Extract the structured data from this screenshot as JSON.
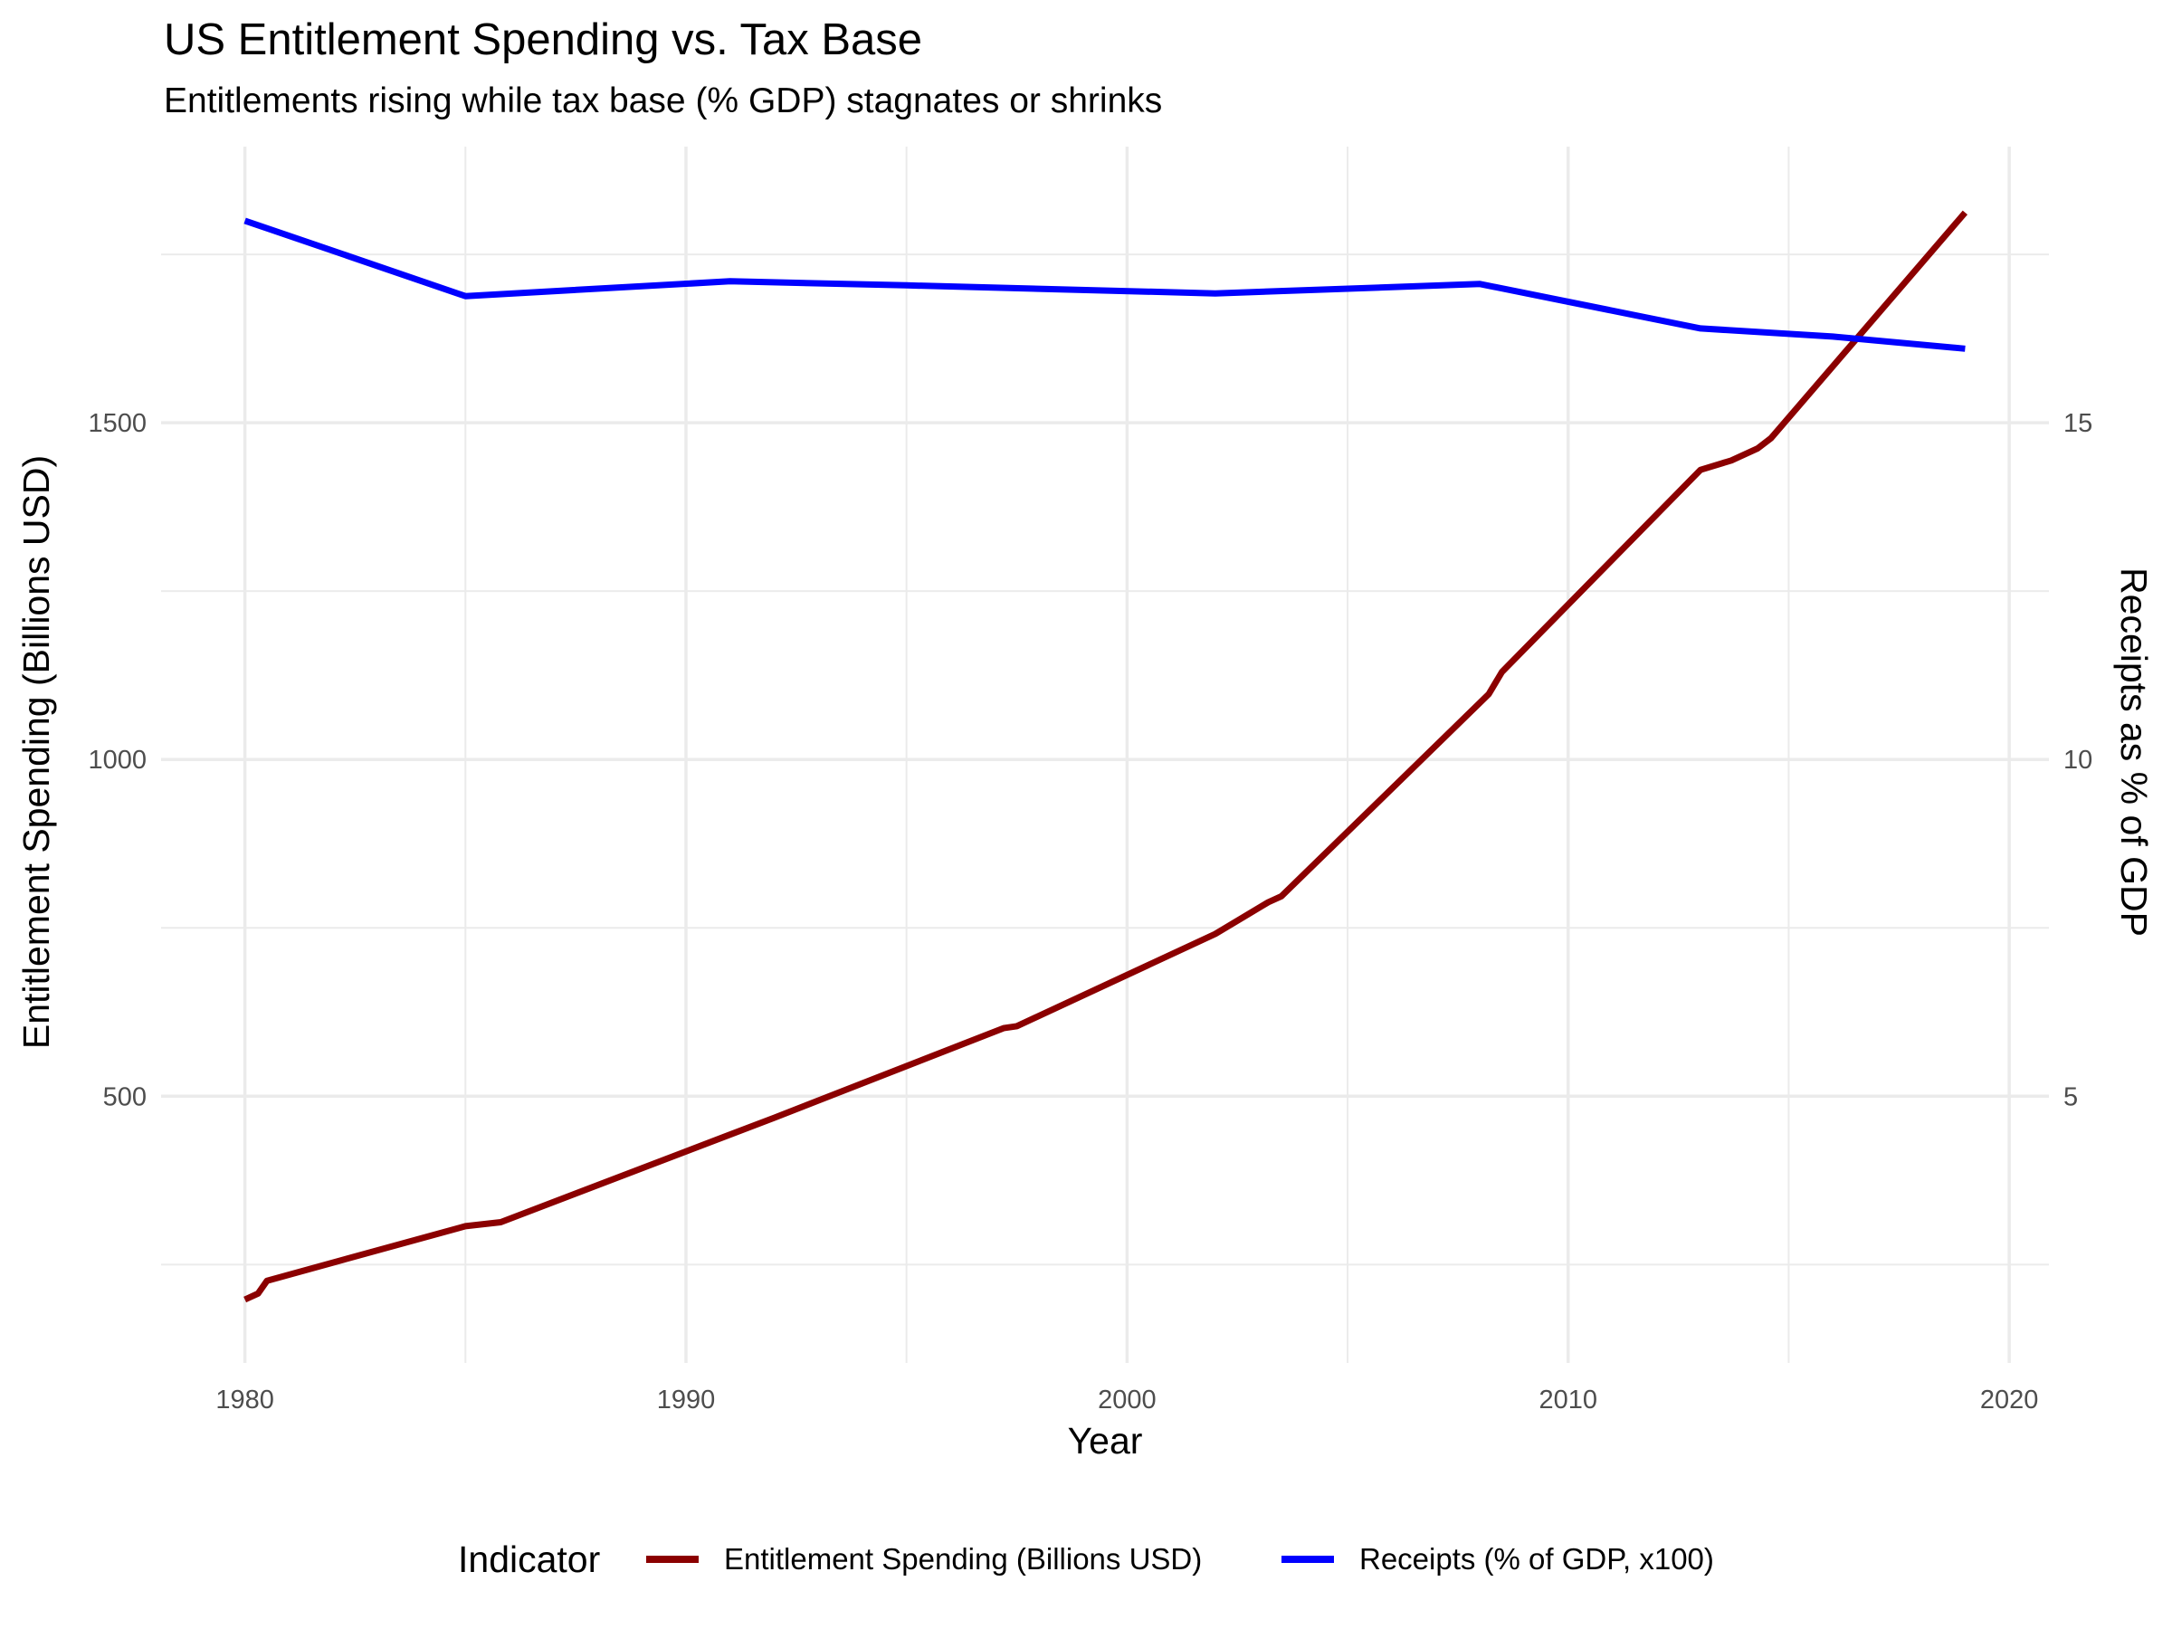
{
  "chart_data": {
    "type": "line",
    "title": "US Entitlement Spending vs. Tax Base",
    "subtitle": "Entitlements rising while tax base (% GDP) stagnates or shrinks",
    "xlabel": "Year",
    "ylabel": "Entitlement Spending (Billions USD)",
    "y2label": "Receipts as % of GDP",
    "xlim": [
      1978.1,
      2020.9
    ],
    "ylim": [
      104,
      1910
    ],
    "xticks": [
      1980,
      1990,
      2000,
      2010,
      2020
    ],
    "xticks_minor": [
      1985,
      1995,
      2005,
      2015
    ],
    "yticks": [
      500,
      1000,
      1500
    ],
    "yticks_minor": [
      250,
      750,
      1250,
      1750
    ],
    "y2ticks": [
      5,
      10,
      15
    ],
    "y2_scale": "y2 = y / 100",
    "grid": true,
    "legend": {
      "title": "Indicator",
      "position": "bottom"
    },
    "series": [
      {
        "name": "Entitlement Spending (Billions USD)",
        "color": "#8B0000",
        "x": [
          1980,
          1980.3,
          1980.5,
          1985,
          1985.8,
          1991,
          1992,
          1997.2,
          1997.5,
          2002,
          2003.2,
          2003.5,
          2008.2,
          2008.5,
          2013,
          2013.7,
          2014.3,
          2014.6,
          2019
        ],
        "y": [
          198,
          207,
          226,
          307,
          313,
          443,
          468,
          601,
          604,
          741,
          788,
          797,
          1097,
          1130,
          1430,
          1444,
          1462,
          1477,
          1812
        ]
      },
      {
        "name": "Receipts (% of GDP, x100)",
        "color": "#0000FF",
        "x": [
          1980,
          1985,
          1991,
          1995,
          2002,
          2008,
          2013,
          2016,
          2019
        ],
        "y": [
          1800,
          1688,
          1710,
          1704,
          1692,
          1706,
          1640,
          1628,
          1610
        ]
      }
    ]
  }
}
